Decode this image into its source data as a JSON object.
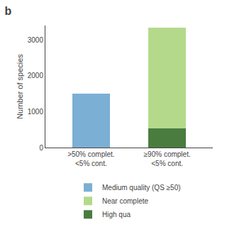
{
  "chart_data": {
    "type": "bar",
    "title": "b",
    "ylabel": "Number of species",
    "categories": [
      ">50% complet.\n<5% cont.",
      "≥90% complet.\n<5% cont."
    ],
    "series": [
      {
        "name": "Medium quality (QS ≥50)",
        "color": "#7bafd4",
        "values": [
          1500,
          null
        ]
      },
      {
        "name": "Near complete",
        "color": "#b5d98b",
        "values": [
          null,
          2820
        ]
      },
      {
        "name": "High qua",
        "color": "#4a7c3f",
        "values": [
          null,
          530
        ]
      }
    ],
    "stacked": true,
    "ylim": [
      0,
      3400
    ],
    "yticks": [
      0,
      1000,
      2000,
      3000
    ],
    "grid": false,
    "legend": "bottom"
  }
}
